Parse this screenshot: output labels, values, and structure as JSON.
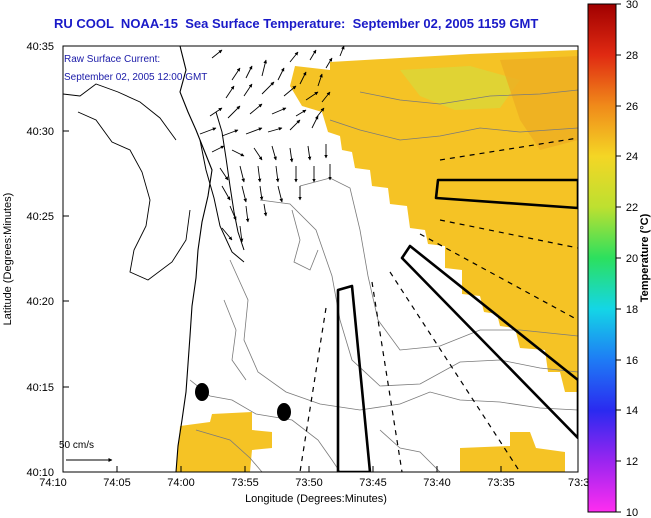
{
  "title": "RU COOL  NOAA-15  Sea Surface Temperature:  September 02, 2005 1159 GMT",
  "annotation": {
    "line1": "Raw Surface Current:",
    "line2": "September 02, 2005 12:00 GMT"
  },
  "scale_label": "50 cm/s",
  "axes": {
    "xlabel": "Longitude (Degrees:Minutes)",
    "ylabel": "Latitude (Degrees:Minutes)",
    "x_ticks": [
      "74:10",
      "74:05",
      "74:00",
      "73:55",
      "73:50",
      "73:45",
      "73:40",
      "73:35",
      "73:3"
    ],
    "y_ticks": [
      "40:35",
      "40:30",
      "40:25",
      "40:20",
      "40:15",
      "40:10"
    ]
  },
  "colorbar": {
    "label": "Temperature (°C)",
    "min": 10,
    "max": 30,
    "ticks": [
      "30",
      "28",
      "26",
      "24",
      "22",
      "20",
      "18",
      "16",
      "14",
      "12",
      "10"
    ]
  },
  "colors": {
    "sst_main": "#f5c325",
    "sst_green": "#cfe040",
    "sst_warm": "#eca621",
    "title_blue": "#1a1ac8",
    "annotation_blue": "#1a1aa8"
  }
}
